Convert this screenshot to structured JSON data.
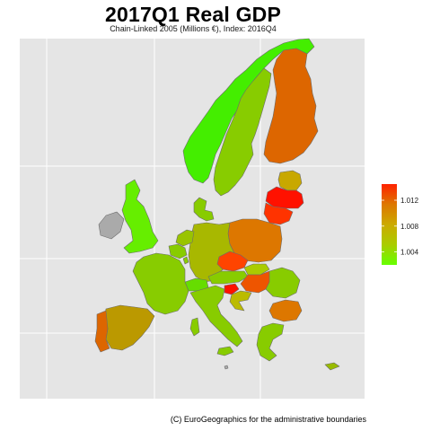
{
  "title": "2017Q1 Real GDP",
  "subtitle": "Chain-Linked 2005 (Millions €), Index: 2016Q4",
  "caption": "(C) EuroGeographics for the administrative boundaries",
  "map": {
    "background_color": "#e5e5e5",
    "gridline_color": "#ffffff",
    "missing_color": "#aaaaaa",
    "grid_lines": true
  },
  "legend": {
    "colors": [
      "#66ff00",
      "#aacc00",
      "#ccaa00",
      "#dd7700",
      "#ff2200"
    ],
    "tick_labels": [
      "1.004",
      "1.008",
      "1.012"
    ],
    "tick_values": [
      1.004,
      1.008,
      1.012
    ],
    "min": 1.002,
    "max": 1.0145,
    "placement": "right"
  },
  "regions": [
    {
      "name": "Norway",
      "color": "#44ee00"
    },
    {
      "name": "Sweden",
      "color": "#88cc00"
    },
    {
      "name": "Finland",
      "color": "#dd6600"
    },
    {
      "name": "Estonia",
      "color": "#c8a800"
    },
    {
      "name": "Latvia",
      "color": "#ff1100"
    },
    {
      "name": "Lithuania",
      "color": "#ff3300"
    },
    {
      "name": "Poland",
      "color": "#dd7700"
    },
    {
      "name": "Germany",
      "color": "#a8b800"
    },
    {
      "name": "Czech Republic",
      "color": "#ff4400"
    },
    {
      "name": "Slovakia",
      "color": "#aacc00"
    },
    {
      "name": "Hungary",
      "color": "#ee5500"
    },
    {
      "name": "Austria",
      "color": "#88cc00"
    },
    {
      "name": "Slovenia",
      "color": "#ff1100"
    },
    {
      "name": "Croatia",
      "color": "#bbbb00"
    },
    {
      "name": "Romania",
      "color": "#88cc00"
    },
    {
      "name": "Bulgaria",
      "color": "#dd7700"
    },
    {
      "name": "Greece",
      "color": "#88cc00"
    },
    {
      "name": "Italy",
      "color": "#88cc00"
    },
    {
      "name": "Switzerland",
      "color": "#66dd00"
    },
    {
      "name": "France",
      "color": "#88cc00"
    },
    {
      "name": "Belgium",
      "color": "#88cc00"
    },
    {
      "name": "Netherlands",
      "color": "#99c400"
    },
    {
      "name": "Luxembourg",
      "color": "#88cc00"
    },
    {
      "name": "Denmark",
      "color": "#88cc00"
    },
    {
      "name": "United Kingdom",
      "color": "#66ee00"
    },
    {
      "name": "Ireland",
      "color": "#aaaaaa"
    },
    {
      "name": "Spain",
      "color": "#bb9900"
    },
    {
      "name": "Portugal",
      "color": "#dd6600"
    },
    {
      "name": "Cyprus",
      "color": "#99bb00"
    },
    {
      "name": "Malta",
      "color": "#aaaaaa"
    }
  ]
}
